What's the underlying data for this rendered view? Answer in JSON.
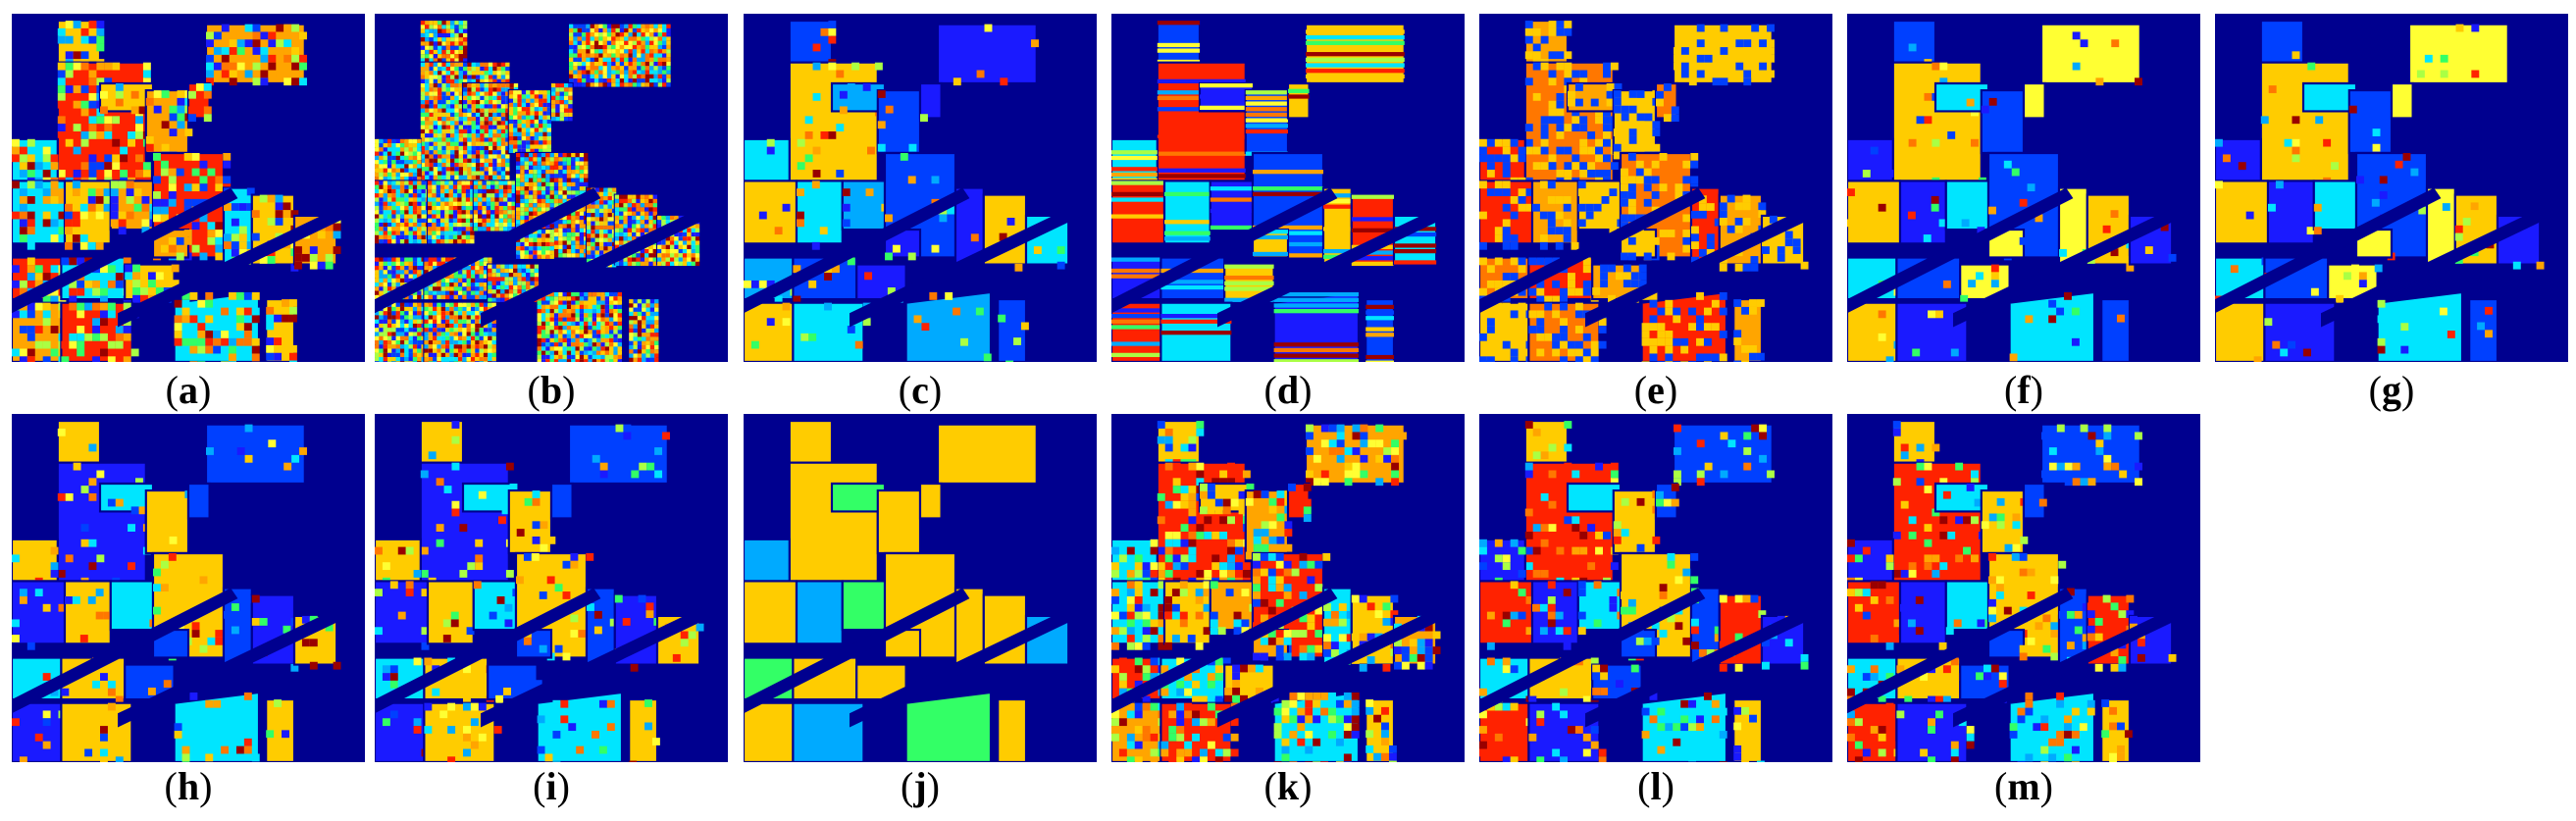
{
  "figure": {
    "panels": [
      {
        "label": "a",
        "style": "mixed-noisy"
      },
      {
        "label": "b",
        "style": "random-noise"
      },
      {
        "label": "c",
        "style": "smooth-blue"
      },
      {
        "label": "d",
        "style": "streaky"
      },
      {
        "label": "e",
        "style": "orange-speckle"
      },
      {
        "label": "f",
        "style": "blue-yellow"
      },
      {
        "label": "g",
        "style": "blue-yellow"
      },
      {
        "label": "h",
        "style": "yellow-blue"
      },
      {
        "label": "i",
        "style": "yellow-blue"
      },
      {
        "label": "j",
        "style": "clean-yellow"
      },
      {
        "label": "k",
        "style": "mixed-noisy"
      },
      {
        "label": "l",
        "style": "mixed"
      },
      {
        "label": "m",
        "style": "mixed"
      }
    ],
    "colors": {
      "background": "#00008f",
      "palette": [
        "#ffcc00",
        "#ffa500",
        "#0040ff",
        "#1a1aff",
        "#00e5ff",
        "#ff2200",
        "#33ff66",
        "#aaff44",
        "#990000",
        "#00aaff",
        "#ffff33",
        "#ff7700"
      ]
    }
  }
}
